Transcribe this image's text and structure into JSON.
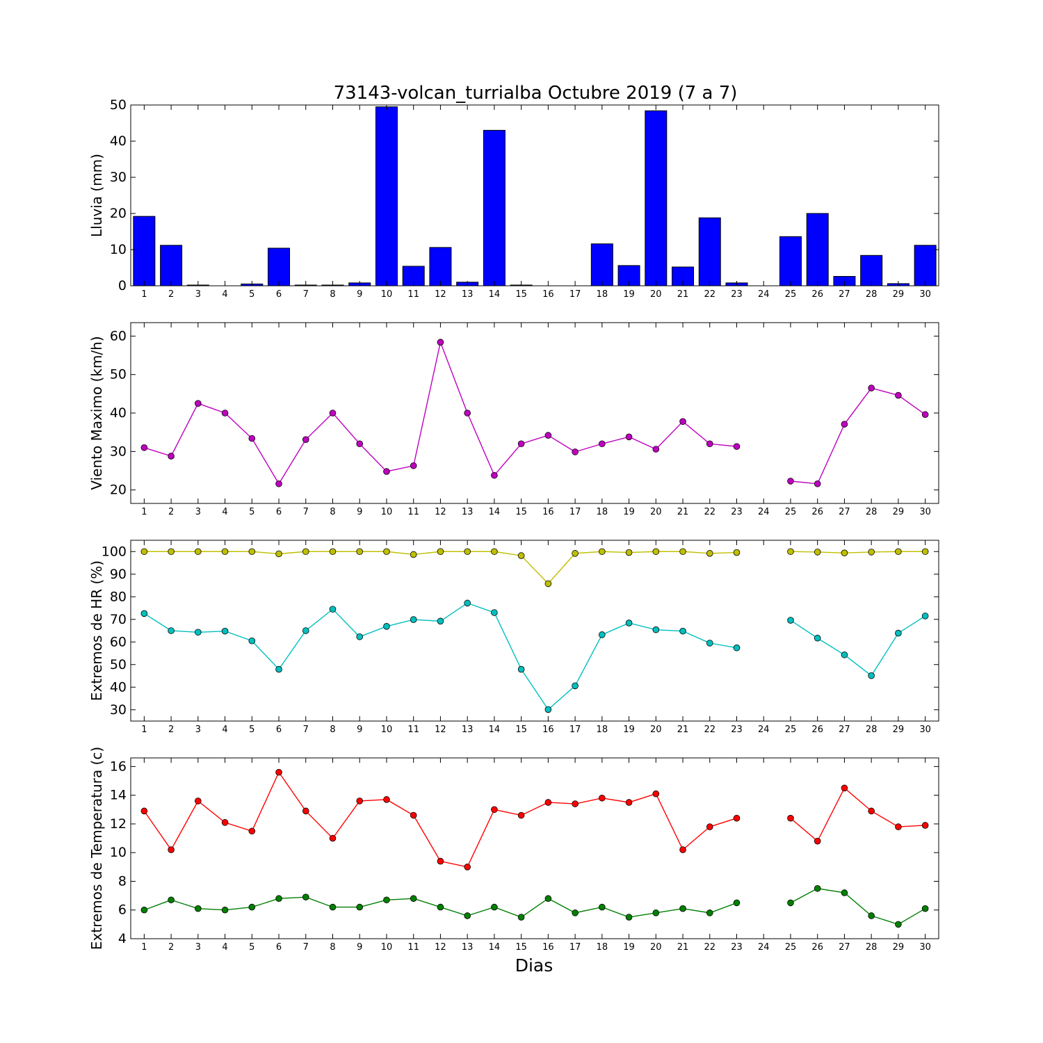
{
  "figure": {
    "title": "73143-volcan_turrialba Octubre 2019  (7 a 7)",
    "xlabel": "Dias"
  },
  "chart_data": [
    {
      "type": "bar",
      "ylabel": "Lluvia (mm)",
      "ylim": [
        0,
        50
      ],
      "yticks": [
        0,
        10,
        20,
        30,
        40,
        50
      ],
      "xlim": [
        0.5,
        30.5
      ],
      "categories": [
        1,
        2,
        3,
        4,
        5,
        6,
        7,
        8,
        9,
        10,
        11,
        12,
        13,
        14,
        15,
        16,
        17,
        18,
        19,
        20,
        21,
        22,
        23,
        24,
        25,
        26,
        27,
        28,
        29,
        30
      ],
      "series": [
        {
          "color": "#0000ff",
          "values": [
            19.2,
            11.2,
            0.2,
            0.0,
            0.5,
            10.4,
            0.2,
            0.2,
            0.8,
            49.5,
            5.4,
            10.6,
            1.0,
            43.0,
            0.2,
            0.0,
            0.0,
            11.6,
            5.6,
            48.4,
            5.2,
            18.8,
            0.8,
            0.0,
            13.6,
            20.0,
            2.6,
            8.4,
            0.6,
            11.2
          ]
        }
      ],
      "grid": false
    },
    {
      "type": "line",
      "ylabel": "Viento Maximo (km/h)",
      "ylim": [
        16.5,
        63.5
      ],
      "yticks": [
        20,
        30,
        40,
        50,
        60
      ],
      "xlim": [
        0.5,
        30.5
      ],
      "categories": [
        1,
        2,
        3,
        4,
        5,
        6,
        7,
        8,
        9,
        10,
        11,
        12,
        13,
        14,
        15,
        16,
        17,
        18,
        19,
        20,
        21,
        22,
        23,
        24,
        25,
        26,
        27,
        28,
        29,
        30
      ],
      "series": [
        {
          "color": "#bf00bf",
          "values": [
            31.0,
            28.8,
            42.5,
            40.0,
            33.4,
            21.6,
            33.1,
            40.0,
            32.0,
            24.8,
            26.3,
            58.4,
            40.0,
            23.8,
            32.0,
            34.2,
            29.9,
            32.0,
            33.8,
            30.6,
            37.8,
            32.0,
            31.3,
            null,
            22.3,
            21.6,
            37.1,
            46.5,
            44.6,
            39.6
          ]
        }
      ],
      "grid": false
    },
    {
      "type": "line",
      "ylabel": "Extremos de HR (%)",
      "ylim": [
        25,
        105
      ],
      "yticks": [
        30,
        40,
        50,
        60,
        70,
        80,
        90,
        100
      ],
      "xlim": [
        0.5,
        30.5
      ],
      "categories": [
        1,
        2,
        3,
        4,
        5,
        6,
        7,
        8,
        9,
        10,
        11,
        12,
        13,
        14,
        15,
        16,
        17,
        18,
        19,
        20,
        21,
        22,
        23,
        24,
        25,
        26,
        27,
        28,
        29,
        30
      ],
      "series": [
        {
          "color": "#bfbf00",
          "values": [
            100,
            100,
            100,
            100,
            100,
            99,
            100,
            100,
            100,
            100,
            98.7,
            100,
            100,
            100,
            98.2,
            85.8,
            99.2,
            100,
            99.6,
            100,
            100,
            99.2,
            99.6,
            null,
            100,
            99.8,
            99.4,
            99.8,
            100,
            100
          ]
        },
        {
          "color": "#00bfbf",
          "values": [
            72.6,
            65,
            64.3,
            64.8,
            60.5,
            47.9,
            65,
            74.5,
            62.3,
            66.9,
            69.9,
            69.2,
            77.2,
            73,
            47.9,
            30.1,
            40.6,
            63.2,
            68.4,
            65.4,
            64.8,
            59.5,
            57.4,
            null,
            69.6,
            61.7,
            54.3,
            45.1,
            63.9,
            71.5
          ]
        }
      ],
      "grid": false
    },
    {
      "type": "line",
      "ylabel": "Extremos de Temperatura (c)",
      "ylim": [
        4,
        16.6
      ],
      "yticks": [
        4,
        6,
        8,
        10,
        12,
        14,
        16
      ],
      "xlim": [
        0.5,
        30.5
      ],
      "categories": [
        1,
        2,
        3,
        4,
        5,
        6,
        7,
        8,
        9,
        10,
        11,
        12,
        13,
        14,
        15,
        16,
        17,
        18,
        19,
        20,
        21,
        22,
        23,
        24,
        25,
        26,
        27,
        28,
        29,
        30
      ],
      "series": [
        {
          "color": "#ff0000",
          "values": [
            12.9,
            10.2,
            13.6,
            12.1,
            11.5,
            15.6,
            12.9,
            11.0,
            13.6,
            13.7,
            12.6,
            9.4,
            9.0,
            13.0,
            12.6,
            13.5,
            13.4,
            13.8,
            13.5,
            14.1,
            10.2,
            11.8,
            12.4,
            null,
            12.4,
            10.8,
            14.5,
            12.9,
            11.8,
            11.9
          ]
        },
        {
          "color": "#008000",
          "values": [
            6.0,
            6.7,
            6.1,
            6.0,
            6.2,
            6.8,
            6.9,
            6.2,
            6.2,
            6.7,
            6.8,
            6.2,
            5.6,
            6.2,
            5.5,
            6.8,
            5.8,
            6.2,
            5.5,
            5.8,
            6.1,
            5.8,
            6.5,
            null,
            6.5,
            7.5,
            7.2,
            5.6,
            5.0,
            6.1
          ]
        }
      ],
      "grid": false
    }
  ]
}
